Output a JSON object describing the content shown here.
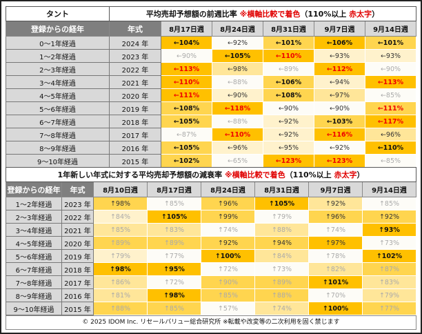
{
  "top": {
    "model": "タント",
    "title_main": "平均売却予想額の前週比率 ",
    "title_note": "※横軸比較で着色",
    "title_paren_a": "（110%以上 ",
    "title_paren_red": "赤太字",
    "title_paren_b": "）",
    "col_age": "登録からの経年",
    "col_year": "年式",
    "arrow": "←",
    "weeks": [
      "8月17日週",
      "8月24日週",
      "8月31日週",
      "9月7日週",
      "9月14日週"
    ],
    "rows": [
      {
        "age": "0～1年経過",
        "year": "2024 年",
        "cells": [
          [
            104,
            4,
            "b"
          ],
          [
            92,
            0,
            "n"
          ],
          [
            101,
            3,
            "b"
          ],
          [
            106,
            4,
            "b"
          ],
          [
            101,
            3,
            "b"
          ]
        ]
      },
      {
        "age": "1～2年経過",
        "year": "2023 年",
        "cells": [
          [
            90,
            0,
            "m"
          ],
          [
            105,
            4,
            "b"
          ],
          [
            110,
            4,
            "r"
          ],
          [
            93,
            1,
            "n"
          ],
          [
            93,
            1,
            "n"
          ]
        ]
      },
      {
        "age": "2～3年経過",
        "year": "2022 年",
        "cells": [
          [
            113,
            4,
            "r"
          ],
          [
            98,
            2,
            "n"
          ],
          [
            89,
            0,
            "m"
          ],
          [
            112,
            4,
            "r"
          ],
          [
            90,
            0,
            "m"
          ]
        ]
      },
      {
        "age": "3～4年経過",
        "year": "2021 年",
        "cells": [
          [
            110,
            4,
            "r"
          ],
          [
            88,
            0,
            "m"
          ],
          [
            106,
            3,
            "b"
          ],
          [
            94,
            1,
            "n"
          ],
          [
            113,
            4,
            "r"
          ]
        ]
      },
      {
        "age": "4～5年経過",
        "year": "2020 年",
        "cells": [
          [
            111,
            4,
            "r"
          ],
          [
            90,
            1,
            "n"
          ],
          [
            108,
            3,
            "b"
          ],
          [
            97,
            2,
            "n"
          ],
          [
            85,
            0,
            "m"
          ]
        ]
      },
      {
        "age": "5～6年経過",
        "year": "2019 年",
        "cells": [
          [
            108,
            3,
            "b"
          ],
          [
            118,
            4,
            "r"
          ],
          [
            90,
            0,
            "n"
          ],
          [
            90,
            0,
            "n"
          ],
          [
            111,
            3,
            "r"
          ]
        ]
      },
      {
        "age": "6～7年経過",
        "year": "2018 年",
        "cells": [
          [
            105,
            3,
            "b"
          ],
          [
            88,
            0,
            "m"
          ],
          [
            92,
            1,
            "n"
          ],
          [
            103,
            3,
            "b"
          ],
          [
            117,
            4,
            "r"
          ]
        ]
      },
      {
        "age": "7～8年経過",
        "year": "2017 年",
        "cells": [
          [
            87,
            0,
            "m"
          ],
          [
            110,
            4,
            "r"
          ],
          [
            92,
            1,
            "n"
          ],
          [
            116,
            4,
            "r"
          ],
          [
            96,
            2,
            "n"
          ]
        ]
      },
      {
        "age": "8～9年経過",
        "year": "2016 年",
        "cells": [
          [
            105,
            3,
            "b"
          ],
          [
            96,
            1,
            "n"
          ],
          [
            95,
            1,
            "n"
          ],
          [
            92,
            0,
            "n"
          ],
          [
            110,
            4,
            "b"
          ]
        ]
      },
      {
        "age": "9～10年経過",
        "year": "2015 年",
        "cells": [
          [
            102,
            3,
            "b"
          ],
          [
            65,
            0,
            "m"
          ],
          [
            123,
            4,
            "r"
          ],
          [
            123,
            4,
            "r"
          ],
          [
            85,
            0,
            "m"
          ]
        ]
      }
    ]
  },
  "bottom": {
    "title_main": "1年新しい年式に対する平均売却予想額の減衰率  ",
    "title_note": "※横軸比較で着色",
    "title_paren_a": "（110%以上 ",
    "title_paren_red": "赤太字",
    "title_paren_b": "）",
    "col_age": "登録からの経年",
    "col_year": "年式",
    "arrow": "↑",
    "weeks": [
      "8月10日週",
      "8月17日週",
      "8月24日週",
      "8月31日週",
      "9月7日週",
      "9月14日週"
    ],
    "rows": [
      {
        "age": "1～2年経過",
        "year": "2023 年",
        "cells": [
          [
            98,
            3,
            "n"
          ],
          [
            85,
            0,
            "m"
          ],
          [
            96,
            3,
            "n"
          ],
          [
            105,
            4,
            "b"
          ],
          [
            92,
            2,
            "n"
          ],
          [
            85,
            0,
            "m"
          ]
        ]
      },
      {
        "age": "2～3年経過",
        "year": "2022 年",
        "cells": [
          [
            84,
            1,
            "m"
          ],
          [
            105,
            4,
            "b"
          ],
          [
            99,
            3,
            "n"
          ],
          [
            79,
            0,
            "m"
          ],
          [
            96,
            3,
            "n"
          ],
          [
            92,
            3,
            "n"
          ]
        ]
      },
      {
        "age": "3～4年経過",
        "year": "2021 年",
        "cells": [
          [
            85,
            2,
            "m"
          ],
          [
            83,
            2,
            "m"
          ],
          [
            74,
            0,
            "m"
          ],
          [
            88,
            2,
            "m"
          ],
          [
            74,
            0,
            "m"
          ],
          [
            93,
            4,
            "b"
          ]
        ]
      },
      {
        "age": "4～5年経過",
        "year": "2020 年",
        "cells": [
          [
            89,
            3,
            "m"
          ],
          [
            89,
            3,
            "m"
          ],
          [
            92,
            3,
            "n"
          ],
          [
            94,
            3,
            "n"
          ],
          [
            97,
            4,
            "n"
          ],
          [
            73,
            0,
            "m"
          ]
        ]
      },
      {
        "age": "5～6年経過",
        "year": "2019 年",
        "cells": [
          [
            79,
            1,
            "m"
          ],
          [
            77,
            0,
            "m"
          ],
          [
            100,
            4,
            "b"
          ],
          [
            84,
            2,
            "m"
          ],
          [
            78,
            0,
            "m"
          ],
          [
            102,
            4,
            "b"
          ]
        ]
      },
      {
        "age": "6～7年経過",
        "year": "2018 年",
        "cells": [
          [
            98,
            4,
            "b"
          ],
          [
            95,
            4,
            "b"
          ],
          [
            72,
            0,
            "m"
          ],
          [
            73,
            0,
            "m"
          ],
          [
            82,
            2,
            "m"
          ],
          [
            87,
            3,
            "m"
          ]
        ]
      },
      {
        "age": "7～8年経過",
        "year": "2017 年",
        "cells": [
          [
            86,
            2,
            "m"
          ],
          [
            72,
            0,
            "m"
          ],
          [
            90,
            3,
            "m"
          ],
          [
            89,
            3,
            "m"
          ],
          [
            101,
            4,
            "b"
          ],
          [
            83,
            2,
            "m"
          ]
        ]
      },
      {
        "age": "8～9年経過",
        "year": "2016 年",
        "cells": [
          [
            81,
            2,
            "m"
          ],
          [
            98,
            4,
            "b"
          ],
          [
            85,
            3,
            "m"
          ],
          [
            88,
            3,
            "m"
          ],
          [
            70,
            0,
            "m"
          ],
          [
            79,
            2,
            "m"
          ]
        ]
      },
      {
        "age": "9～10年経過",
        "year": "2015 年",
        "cells": [
          [
            88,
            3,
            "m"
          ],
          [
            85,
            3,
            "m"
          ],
          [
            57,
            0,
            "m"
          ],
          [
            74,
            2,
            "m"
          ],
          [
            100,
            4,
            "b"
          ],
          [
            77,
            3,
            "m"
          ]
        ]
      }
    ]
  },
  "footer": "© 2025 IDOM Inc. リセールバリュー総合研究所 ※転載や改変等の二次利用を固く禁じます"
}
